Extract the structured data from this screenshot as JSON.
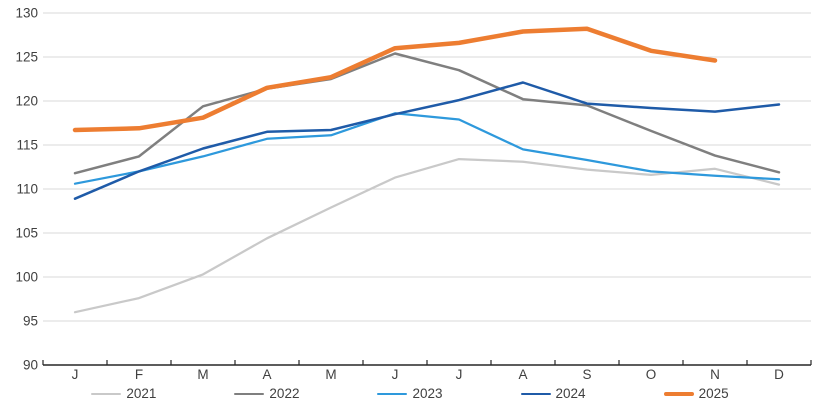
{
  "chart_data": {
    "type": "line",
    "title": "",
    "xlabel": "",
    "ylabel": "",
    "x_labels": [
      "J",
      "F",
      "M",
      "A",
      "M",
      "J",
      "J",
      "A",
      "S",
      "O",
      "N",
      "D"
    ],
    "y_ticks": [
      90,
      95,
      100,
      105,
      110,
      115,
      120,
      125,
      130
    ],
    "ylim": [
      90,
      130
    ],
    "grid": true,
    "legend_position": "bottom",
    "colors": {
      "grid": "#d9d9d9",
      "axis": "#262626",
      "tick_text": "#404040"
    },
    "series": [
      {
        "name": "2021",
        "color": "#c9c9c9",
        "width": 2.25,
        "values": [
          96.0,
          97.6,
          100.3,
          104.4,
          107.9,
          111.3,
          113.4,
          113.1,
          112.2,
          111.6,
          112.3,
          110.5
        ]
      },
      {
        "name": "2022",
        "color": "#7f7f7f",
        "width": 2.5,
        "values": [
          111.8,
          113.7,
          119.4,
          121.4,
          122.5,
          125.4,
          123.5,
          120.2,
          119.5,
          116.6,
          113.8,
          111.9
        ]
      },
      {
        "name": "2023",
        "color": "#2e99dc",
        "width": 2.25,
        "values": [
          110.6,
          112.0,
          113.7,
          115.7,
          116.1,
          118.6,
          117.9,
          114.5,
          113.3,
          112.0,
          111.5,
          111.1
        ]
      },
      {
        "name": "2024",
        "color": "#1f5ba8",
        "width": 2.5,
        "values": [
          108.9,
          112.0,
          114.6,
          116.5,
          116.7,
          118.5,
          120.1,
          122.1,
          119.7,
          119.2,
          118.8,
          119.6
        ]
      },
      {
        "name": "2025",
        "color": "#ed7d31",
        "width": 4.5,
        "values": [
          116.7,
          116.9,
          118.1,
          121.5,
          122.7,
          126.0,
          126.6,
          127.9,
          128.2,
          125.7,
          124.6,
          null
        ]
      }
    ]
  }
}
